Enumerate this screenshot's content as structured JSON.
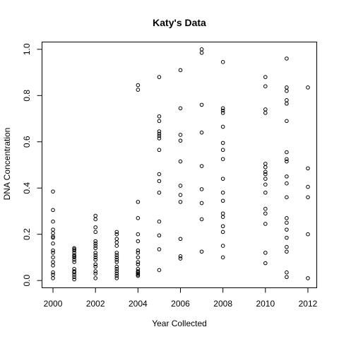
{
  "chart_data": {
    "type": "scatter",
    "title": "Katy's Data",
    "xlabel": "Year Collected",
    "ylabel": "DNA Concentration",
    "xlim": [
      1999.5,
      2012.4
    ],
    "ylim": [
      -0.03,
      1.03
    ],
    "xticks": [
      2000,
      2002,
      2004,
      2006,
      2008,
      2010,
      2012
    ],
    "xtick_labels": [
      "2000",
      "2002",
      "2004",
      "2006",
      "2008",
      "2010",
      "2012"
    ],
    "yticks": [
      0.0,
      0.2,
      0.4,
      0.6,
      0.8,
      1.0
    ],
    "ytick_labels": [
      "0.0",
      "0.2",
      "0.4",
      "0.6",
      "0.8",
      "1.0"
    ],
    "grid": false,
    "marker": "open-circle",
    "points": [
      {
        "year": 2000,
        "values": [
          0.385,
          0.305,
          0.255,
          0.22,
          0.205,
          0.19,
          0.185,
          0.16,
          0.13,
          0.12,
          0.1,
          0.08,
          0.065,
          0.035,
          0.025,
          0.01
        ]
      },
      {
        "year": 2001,
        "values": [
          0.14,
          0.135,
          0.13,
          0.12,
          0.11,
          0.105,
          0.1,
          0.09,
          0.08,
          0.05,
          0.04,
          0.035,
          0.025,
          0.015,
          0.005
        ]
      },
      {
        "year": 2002,
        "values": [
          0.28,
          0.265,
          0.23,
          0.21,
          0.17,
          0.16,
          0.15,
          0.14,
          0.12,
          0.11,
          0.1,
          0.09,
          0.07,
          0.06,
          0.04,
          0.03,
          0.01
        ]
      },
      {
        "year": 2003,
        "values": [
          0.21,
          0.2,
          0.18,
          0.165,
          0.15,
          0.12,
          0.11,
          0.1,
          0.09,
          0.08,
          0.06,
          0.05,
          0.04,
          0.03,
          0.02,
          0.01
        ]
      },
      {
        "year": 2004,
        "values": [
          0.845,
          0.825,
          0.34,
          0.27,
          0.2,
          0.17,
          0.13,
          0.12,
          0.1,
          0.08,
          0.07,
          0.05,
          0.04,
          0.035,
          0.03,
          0.025,
          0.02
        ]
      },
      {
        "year": 2005,
        "values": [
          0.88,
          0.71,
          0.69,
          0.645,
          0.635,
          0.625,
          0.615,
          0.565,
          0.46,
          0.43,
          0.38,
          0.255,
          0.195,
          0.135,
          0.045
        ]
      },
      {
        "year": 2006,
        "values": [
          0.91,
          0.745,
          0.63,
          0.605,
          0.515,
          0.41,
          0.37,
          0.34,
          0.18,
          0.105,
          0.095
        ]
      },
      {
        "year": 2007,
        "values": [
          1.0,
          0.985,
          0.76,
          0.64,
          0.495,
          0.395,
          0.335,
          0.265,
          0.125
        ]
      },
      {
        "year": 2008,
        "values": [
          0.945,
          0.745,
          0.735,
          0.725,
          0.665,
          0.595,
          0.565,
          0.525,
          0.44,
          0.38,
          0.345,
          0.29,
          0.275,
          0.235,
          0.21,
          0.15,
          0.1
        ]
      },
      {
        "year": 2010,
        "values": [
          0.88,
          0.84,
          0.74,
          0.725,
          0.505,
          0.49,
          0.47,
          0.46,
          0.44,
          0.415,
          0.38,
          0.31,
          0.29,
          0.245,
          0.12,
          0.075
        ]
      },
      {
        "year": 2011,
        "values": [
          0.96,
          0.835,
          0.82,
          0.78,
          0.765,
          0.69,
          0.555,
          0.525,
          0.515,
          0.45,
          0.42,
          0.36,
          0.27,
          0.25,
          0.22,
          0.185,
          0.145,
          0.125,
          0.035,
          0.015
        ]
      },
      {
        "year": 2012,
        "values": [
          0.835,
          0.485,
          0.405,
          0.36,
          0.2,
          0.01
        ]
      }
    ]
  }
}
